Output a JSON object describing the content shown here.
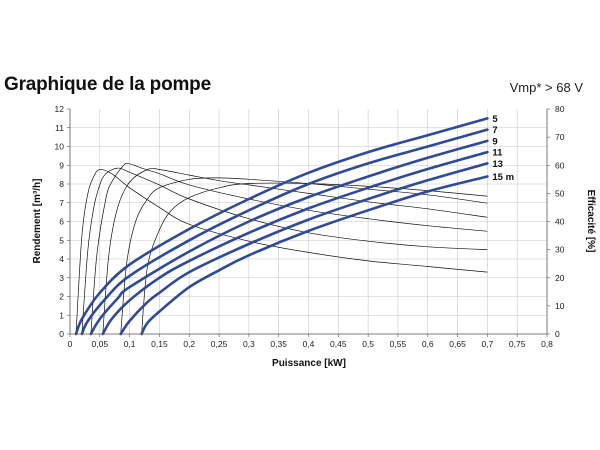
{
  "header": {
    "title": "Graphique de la pompe",
    "note": "Vmp* > 68 V"
  },
  "chart_data": {
    "type": "line",
    "title": "Graphique de la pompe",
    "xlabel": "Puissance [kW]",
    "ylabel": "Rendement [m³/h]",
    "y2label": "Efficacité [%]",
    "xlim": [
      0,
      0.8
    ],
    "ylim": [
      0,
      12
    ],
    "y2lim": [
      0,
      80
    ],
    "grid": true,
    "x_ticks": [
      "0",
      "0,05",
      "0,1",
      "0,15",
      "0,2",
      "0,25",
      "0,3",
      "0,35",
      "0,4",
      "0,45",
      "0,5",
      "0,55",
      "0,6",
      "0,65",
      "0,7",
      "0,75",
      "0,8"
    ],
    "y_ticks": [
      "0",
      "1",
      "2",
      "3",
      "4",
      "5",
      "6",
      "7",
      "8",
      "9",
      "10",
      "11",
      "12"
    ],
    "y2_ticks": [
      "0",
      "10",
      "20",
      "30",
      "40",
      "50",
      "60",
      "70",
      "80"
    ],
    "flow_series": [
      {
        "name": "5",
        "color": "#2e4a9c",
        "x": [
          0.01,
          0.02,
          0.05,
          0.1,
          0.2,
          0.3,
          0.4,
          0.5,
          0.6,
          0.7
        ],
        "y": [
          0.0,
          0.8,
          2.2,
          3.7,
          5.6,
          7.2,
          8.6,
          9.7,
          10.6,
          11.5
        ]
      },
      {
        "name": "7",
        "color": "#2e4a9c",
        "x": [
          0.02,
          0.03,
          0.06,
          0.1,
          0.2,
          0.3,
          0.4,
          0.5,
          0.6,
          0.7
        ],
        "y": [
          0.0,
          0.7,
          1.9,
          3.1,
          5.0,
          6.6,
          8.0,
          9.1,
          10.0,
          10.9
        ]
      },
      {
        "name": "9",
        "color": "#2e4a9c",
        "x": [
          0.035,
          0.05,
          0.08,
          0.1,
          0.2,
          0.3,
          0.4,
          0.5,
          0.6,
          0.7
        ],
        "y": [
          0.0,
          0.8,
          1.9,
          2.5,
          4.4,
          6.0,
          7.3,
          8.4,
          9.4,
          10.3
        ]
      },
      {
        "name": "11",
        "color": "#2e4a9c",
        "x": [
          0.055,
          0.07,
          0.1,
          0.15,
          0.2,
          0.3,
          0.4,
          0.5,
          0.6,
          0.7
        ],
        "y": [
          0.0,
          0.8,
          1.8,
          3.0,
          3.9,
          5.4,
          6.7,
          7.8,
          8.8,
          9.7
        ]
      },
      {
        "name": "13",
        "color": "#2e4a9c",
        "x": [
          0.085,
          0.1,
          0.13,
          0.15,
          0.2,
          0.3,
          0.4,
          0.5,
          0.6,
          0.7
        ],
        "y": [
          0.0,
          0.7,
          1.7,
          2.2,
          3.3,
          4.8,
          6.1,
          7.2,
          8.2,
          9.1
        ]
      },
      {
        "name": "15 m",
        "color": "#2e4a9c",
        "x": [
          0.12,
          0.13,
          0.15,
          0.2,
          0.25,
          0.3,
          0.4,
          0.5,
          0.6,
          0.7
        ],
        "y": [
          0.0,
          0.6,
          1.2,
          2.5,
          3.4,
          4.2,
          5.5,
          6.6,
          7.6,
          8.4
        ]
      }
    ],
    "efficiency_series": [
      {
        "x": [
          0.01,
          0.02,
          0.03,
          0.04,
          0.05,
          0.07,
          0.1,
          0.15,
          0.2,
          0.3,
          0.4,
          0.5,
          0.6,
          0.7
        ],
        "y": [
          0,
          35,
          50,
          56,
          58.5,
          57,
          52,
          45,
          39,
          33,
          29,
          26,
          24,
          22
        ]
      },
      {
        "x": [
          0.02,
          0.03,
          0.04,
          0.05,
          0.06,
          0.08,
          0.1,
          0.15,
          0.2,
          0.3,
          0.4,
          0.5,
          0.6,
          0.7
        ],
        "y": [
          0,
          30,
          45,
          53,
          57,
          59,
          57.5,
          53,
          48,
          41,
          36,
          33,
          31,
          30
        ]
      },
      {
        "x": [
          0.035,
          0.045,
          0.06,
          0.07,
          0.09,
          0.1,
          0.12,
          0.15,
          0.2,
          0.3,
          0.4,
          0.5,
          0.6,
          0.7
        ],
        "y": [
          0,
          28,
          48,
          54,
          60,
          60.5,
          59,
          57,
          53,
          48,
          44,
          41,
          38.5,
          36.5
        ]
      },
      {
        "x": [
          0.055,
          0.065,
          0.08,
          0.1,
          0.13,
          0.15,
          0.2,
          0.25,
          0.3,
          0.4,
          0.5,
          0.6,
          0.7
        ],
        "y": [
          0,
          28,
          45,
          54,
          58.5,
          58.5,
          56.5,
          54.5,
          53,
          50,
          47,
          44.5,
          41.5
        ]
      },
      {
        "x": [
          0.085,
          0.095,
          0.11,
          0.13,
          0.15,
          0.2,
          0.25,
          0.3,
          0.4,
          0.5,
          0.6,
          0.7
        ],
        "y": [
          0,
          25,
          40,
          48,
          52,
          55,
          55.5,
          55,
          53.5,
          51.5,
          49.5,
          46.5
        ]
      },
      {
        "x": [
          0.12,
          0.13,
          0.15,
          0.17,
          0.2,
          0.25,
          0.3,
          0.4,
          0.5,
          0.6,
          0.7
        ],
        "y": [
          0,
          24,
          37,
          44,
          48.5,
          52,
          53.5,
          53.5,
          52.5,
          51,
          49
        ]
      }
    ]
  }
}
